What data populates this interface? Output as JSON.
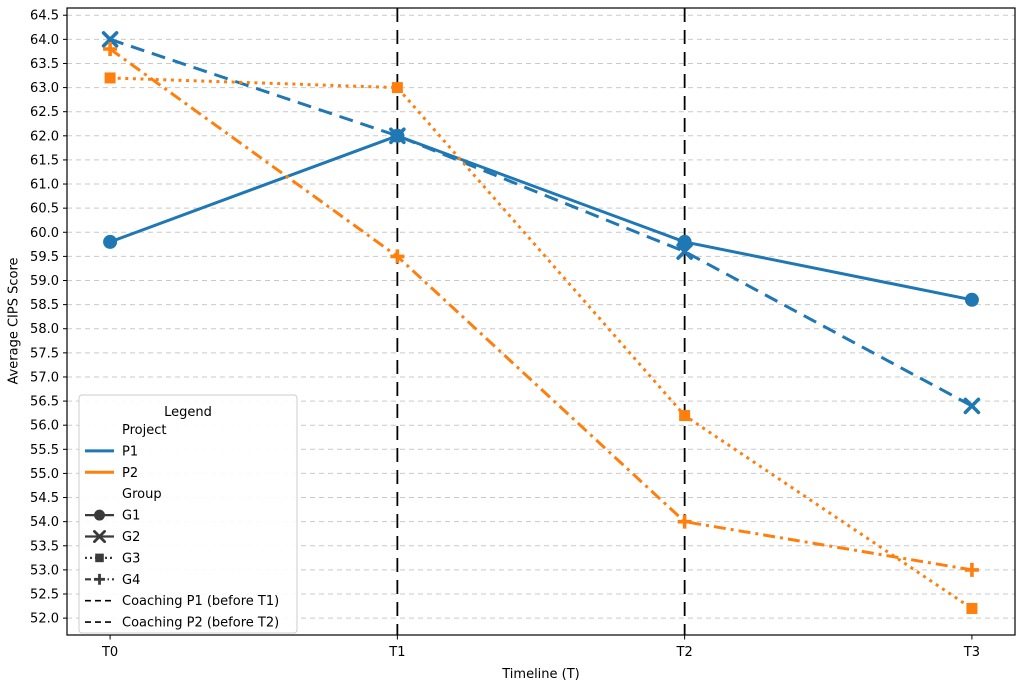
{
  "chart_data": {
    "type": "line",
    "title": "",
    "xlabel": "Timeline (T)",
    "ylabel": "Average CIPS Score",
    "categories": [
      "T0",
      "T1",
      "T2",
      "T3"
    ],
    "xlim": [
      -0.15,
      3.15
    ],
    "ylim": [
      51.65,
      64.65
    ],
    "yticks": [
      52.0,
      52.5,
      53.0,
      53.5,
      54.0,
      54.5,
      55.0,
      55.5,
      56.0,
      56.5,
      57.0,
      57.5,
      58.0,
      58.5,
      59.0,
      59.5,
      60.0,
      60.5,
      61.0,
      61.5,
      62.0,
      62.5,
      63.0,
      63.5,
      64.0,
      64.5
    ],
    "grid": "horizontal-dashed",
    "grid_color": "#c9c9c9",
    "colors": {
      "P1": "#1f77b4",
      "P2": "#ff7f0e",
      "coaching": "#000000",
      "group_handle": "#3a3a3a"
    },
    "series": [
      {
        "name": "P1-G1",
        "project": "P1",
        "group": "G1",
        "color": "#1f77b4",
        "linestyle": "solid",
        "marker": "circle",
        "values": [
          59.8,
          62.0,
          59.8,
          58.6
        ]
      },
      {
        "name": "P1-G2",
        "project": "P1",
        "group": "G2",
        "color": "#1f77b4",
        "linestyle": "dashed",
        "marker": "x",
        "values": [
          64.0,
          62.0,
          59.6,
          56.4
        ]
      },
      {
        "name": "P2-G3",
        "project": "P2",
        "group": "G3",
        "color": "#ff7f0e",
        "linestyle": "dotted",
        "marker": "square",
        "values": [
          63.2,
          63.0,
          56.2,
          52.2
        ]
      },
      {
        "name": "P2-G4",
        "project": "P2",
        "group": "G4",
        "color": "#ff7f0e",
        "linestyle": "dashdot",
        "marker": "plus",
        "values": [
          63.8,
          59.5,
          54.0,
          53.0
        ]
      }
    ],
    "vlines": [
      {
        "x": "T1",
        "label": "Coaching P1 (before T1)",
        "color": "#000000",
        "linestyle": "dashed"
      },
      {
        "x": "T2",
        "label": "Coaching P2 (before T2)",
        "color": "#000000",
        "linestyle": "dashed"
      }
    ],
    "legend": {
      "title": "Legend",
      "position": "lower left",
      "entries": [
        {
          "label": "Project",
          "handle": "none"
        },
        {
          "label": "P1",
          "handle": "line",
          "color": "#1f77b4",
          "linestyle": "solid"
        },
        {
          "label": "P2",
          "handle": "line",
          "color": "#ff7f0e",
          "linestyle": "solid"
        },
        {
          "label": "Group",
          "handle": "none"
        },
        {
          "label": "G1",
          "handle": "line-marker",
          "color": "#3a3a3a",
          "linestyle": "solid",
          "marker": "circle"
        },
        {
          "label": "G2",
          "handle": "line-marker",
          "color": "#3a3a3a",
          "linestyle": "solid",
          "marker": "x"
        },
        {
          "label": "G3",
          "handle": "line-marker",
          "color": "#3a3a3a",
          "linestyle": "dotted",
          "marker": "square"
        },
        {
          "label": "G4",
          "handle": "line-marker",
          "color": "#3a3a3a",
          "linestyle": "dashdot",
          "marker": "plus"
        },
        {
          "label": "Coaching P1 (before T1)",
          "handle": "line",
          "color": "#000000",
          "linestyle": "vdashed"
        },
        {
          "label": "Coaching P2 (before T2)",
          "handle": "line",
          "color": "#000000",
          "linestyle": "vdashed"
        }
      ]
    }
  }
}
